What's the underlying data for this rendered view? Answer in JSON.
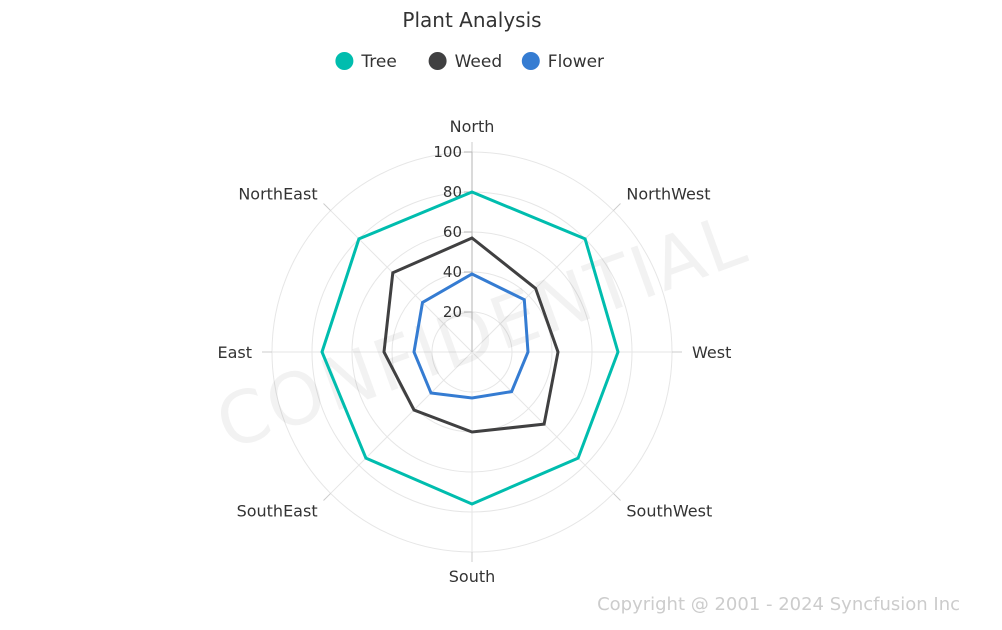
{
  "chart_data": {
    "type": "radar",
    "title": "Plant Analysis",
    "categories": [
      "North",
      "NorthWest",
      "West",
      "SouthWest",
      "South",
      "SouthEast",
      "East",
      "NorthEast"
    ],
    "yticks": [
      20,
      40,
      60,
      80,
      100
    ],
    "ylim": [
      0,
      100
    ],
    "legend_position": "top",
    "grid": true,
    "series": [
      {
        "name": "Tree",
        "color": "#00bdae",
        "values": [
          80,
          80,
          73,
          75,
          76,
          75,
          75,
          80
        ]
      },
      {
        "name": "Weed",
        "color": "#404041",
        "values": [
          57,
          45,
          43,
          51,
          40,
          41,
          44,
          56
        ]
      },
      {
        "name": "Flower",
        "color": "#357cd2",
        "values": [
          39,
          37,
          28,
          28,
          23,
          29,
          29,
          35
        ]
      }
    ]
  },
  "watermark": "CONFIDENTIAL",
  "copyright": "Copyright @ 2001 - 2024 Syncfusion Inc"
}
